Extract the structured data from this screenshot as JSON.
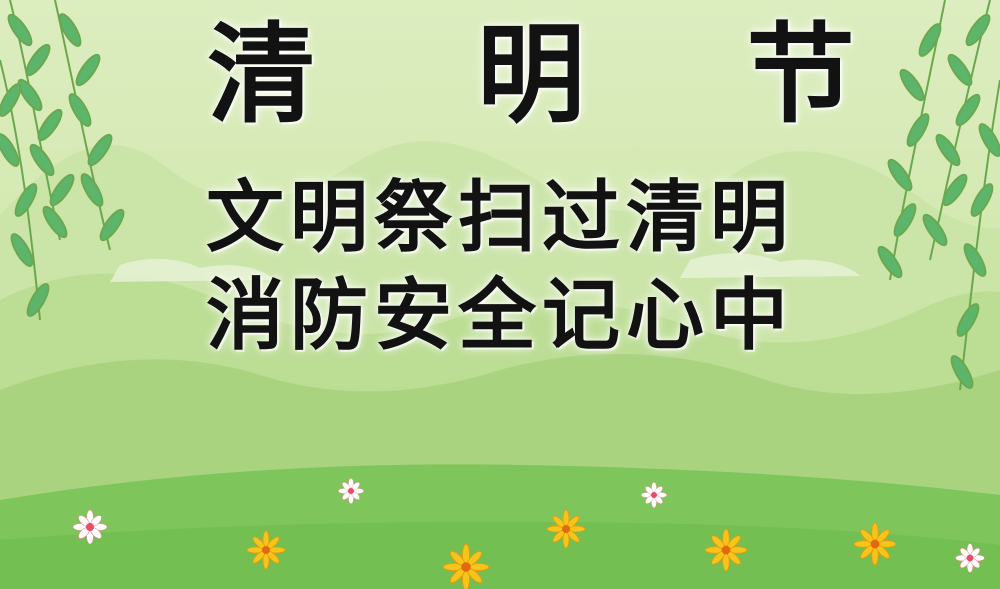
{
  "poster": {
    "title": "清 明 节",
    "line1": "文明祭扫过清明",
    "line2": "消防安全记心中"
  },
  "colors": {
    "sky": "#dcedbf",
    "hill_far": "#c9e3a6",
    "hill_near": "#b5da8d",
    "meadow": "#7dc55a",
    "leaf": "#5fb66a",
    "flower_yellow": "#f7c51a",
    "flower_white": "#ffffff",
    "text": "#121212"
  },
  "icons": [
    "willow-branch-icon",
    "daisy-flower-icon",
    "yellow-flower-icon"
  ]
}
